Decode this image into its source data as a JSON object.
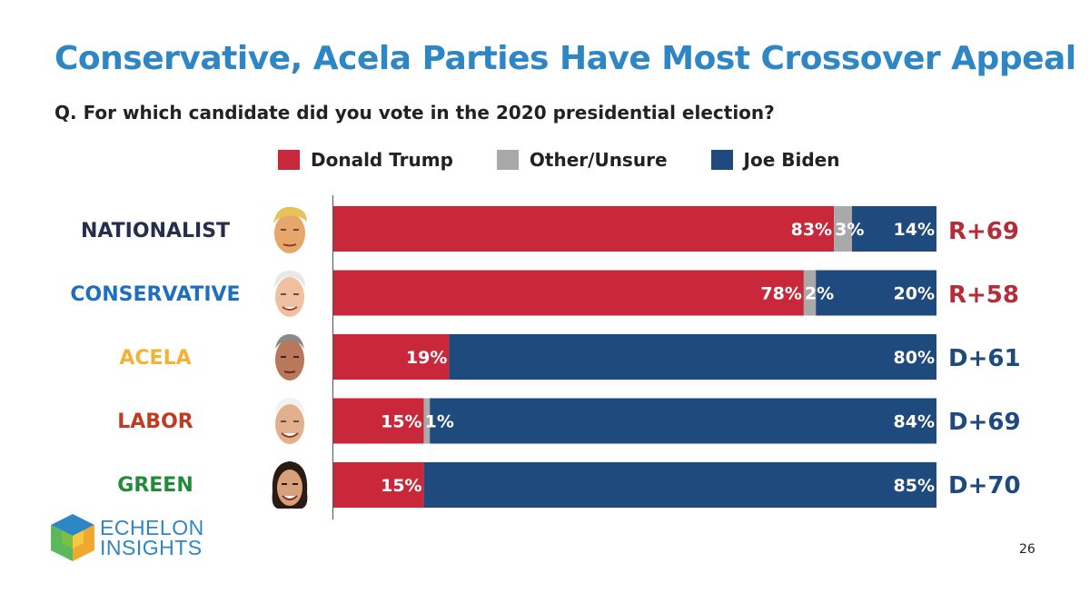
{
  "title": "Conservative, Acela Parties Have Most Crossover Appeal",
  "subtitle": "Q. For which candidate did you vote in the 2020 presidential election?",
  "legend": [
    {
      "label": "Donald Trump",
      "color": "#c8283a"
    },
    {
      "label": "Other/Unsure",
      "color": "#a9a9a9"
    },
    {
      "label": "Joe Biden",
      "color": "#1e4a7e"
    }
  ],
  "rows": [
    {
      "label": "NATIONALIST",
      "label_color": "#232f4b",
      "margin": "R+69",
      "margin_color": "#b52d3a"
    },
    {
      "label": "CONSERVATIVE",
      "label_color": "#1e6fc0",
      "margin": "R+58",
      "margin_color": "#b52d3a"
    },
    {
      "label": "ACELA",
      "label_color": "#f2b233",
      "margin": "D+61",
      "margin_color": "#1e4a7e"
    },
    {
      "label": "LABOR",
      "label_color": "#c13a22",
      "margin": "D+69",
      "margin_color": "#1e4a7e"
    },
    {
      "label": "GREEN",
      "label_color": "#238a3a",
      "margin": "D+70",
      "margin_color": "#1e4a7e"
    }
  ],
  "chart_data": {
    "type": "bar",
    "orientation": "horizontal",
    "stacked": true,
    "categories": [
      "NATIONALIST",
      "CONSERVATIVE",
      "ACELA",
      "LABOR",
      "GREEN"
    ],
    "series": [
      {
        "name": "Donald Trump",
        "values": [
          83,
          78,
          19,
          15,
          15
        ],
        "labels": [
          "83%",
          "78%",
          "19%",
          "15%",
          "15%"
        ]
      },
      {
        "name": "Other/Unsure",
        "values": [
          3,
          2,
          0,
          1,
          0
        ],
        "labels": [
          "3%",
          "2%",
          "",
          "1%",
          ""
        ]
      },
      {
        "name": "Joe Biden",
        "values": [
          14,
          20,
          80,
          84,
          85
        ],
        "labels": [
          "14%",
          "20%",
          "80%",
          "84%",
          "85%"
        ]
      }
    ],
    "xlim": [
      0,
      100
    ],
    "legend": "top",
    "grid": false
  },
  "logo": {
    "line1": "ECHELON",
    "line2": "INSIGHTS"
  },
  "page_number": "26"
}
